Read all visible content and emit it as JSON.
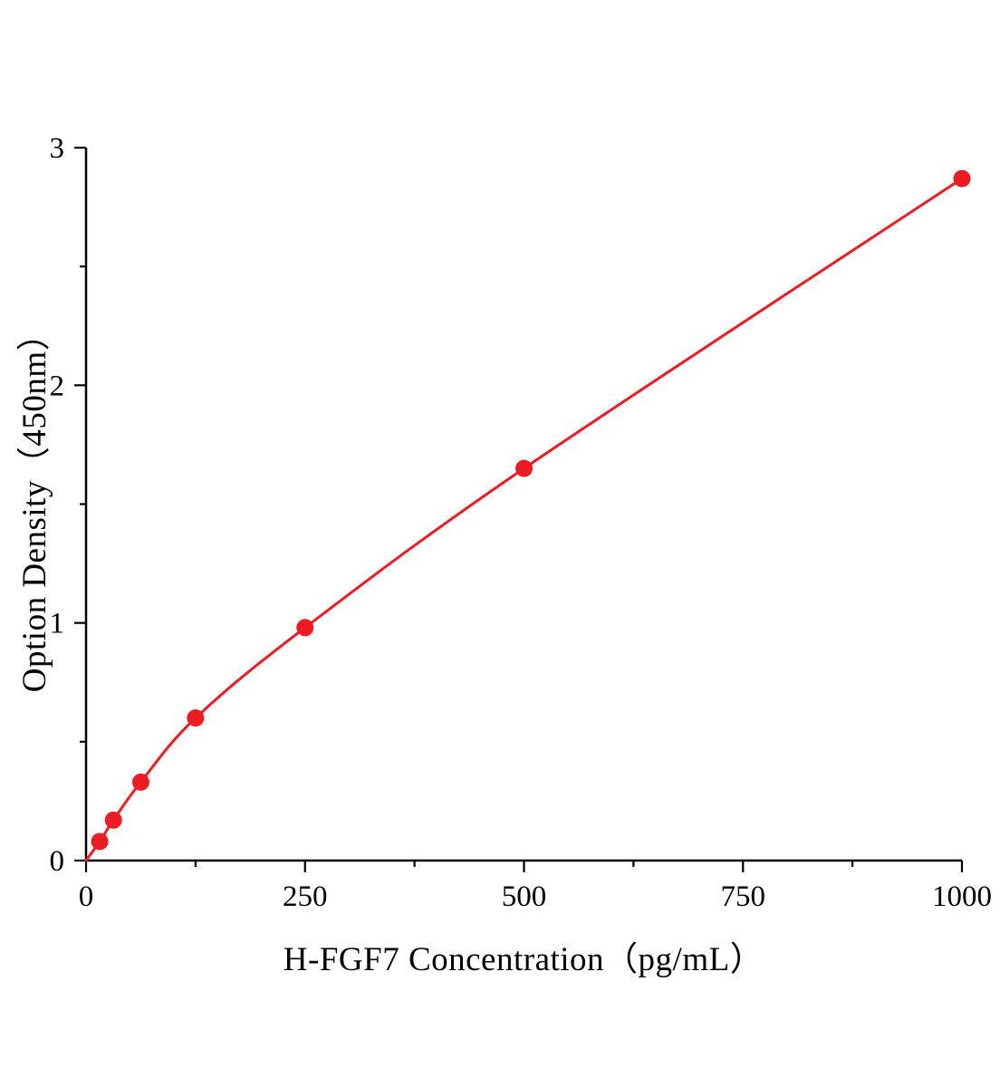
{
  "page": {
    "background": "#ffffff"
  },
  "chart_data": {
    "type": "scatter",
    "title": "",
    "xlabel": "H-FGF7 Concentration（pg/mL）",
    "ylabel": "Option Density（450nm）",
    "x": [
      15.6,
      31.25,
      62.5,
      125,
      250,
      500,
      1000
    ],
    "y": [
      0.08,
      0.17,
      0.33,
      0.6,
      0.98,
      1.65,
      2.87
    ],
    "curve_start": {
      "x": 0,
      "y": 0
    },
    "xlim": [
      0,
      1000
    ],
    "ylim": [
      0,
      3
    ],
    "x_ticks": [
      0,
      250,
      500,
      750,
      1000
    ],
    "x_tick_labels": [
      "0",
      "250",
      "500",
      "750",
      "1000"
    ],
    "x_minor_ticks": [
      125,
      375,
      625,
      875
    ],
    "y_ticks": [
      0,
      1,
      2,
      3
    ],
    "y_tick_labels": [
      "0",
      "1",
      "2",
      "3"
    ],
    "y_minor_ticks": [
      0.5,
      1.5,
      2.5
    ],
    "grid": false,
    "legend_position": "none",
    "line_color": "#ed1c24",
    "marker_color": "#ed1c24",
    "axis_color": "#000000",
    "marker_radius": 9.5,
    "line_width": 3
  }
}
